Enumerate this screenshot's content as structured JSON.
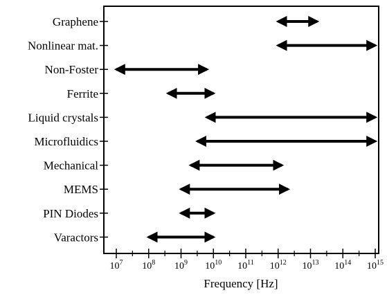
{
  "chart_data": {
    "type": "range",
    "title": "",
    "xlabel": "Frequency [Hz]",
    "ylabel": "",
    "x_scale": "log10",
    "xlim": [
      1000000,
      1000000000000000
    ],
    "x_ticks": [
      {
        "base": "10",
        "exp": "7",
        "value": 10000000
      },
      {
        "base": "10",
        "exp": "8",
        "value": 100000000
      },
      {
        "base": "10",
        "exp": "9",
        "value": 1000000000
      },
      {
        "base": "10",
        "exp": "10",
        "value": 10000000000
      },
      {
        "base": "10",
        "exp": "11",
        "value": 100000000000
      },
      {
        "base": "10",
        "exp": "12",
        "value": 1000000000000
      },
      {
        "base": "10",
        "exp": "13",
        "value": 10000000000000
      },
      {
        "base": "10",
        "exp": "14",
        "value": 100000000000000
      },
      {
        "base": "10",
        "exp": "15",
        "value": 1000000000000000
      }
    ],
    "categories": [
      "Graphene",
      "Nonlinear mat.",
      "Non-Foster",
      "Ferrite",
      "Liquid crystals",
      "Microfluidics",
      "Mechanical",
      "MEMS",
      "PIN Diodes",
      "Varactors"
    ],
    "ranges": [
      {
        "low": 1000000000000,
        "high": 16000000000000
      },
      {
        "low": 1000000000000,
        "high": 1000000000000000
      },
      {
        "low": 10000000,
        "high": 6300000000
      },
      {
        "low": 400000000,
        "high": 10000000000
      },
      {
        "low": 6300000000,
        "high": 1000000000000000
      },
      {
        "low": 3200000000,
        "high": 1000000000000000
      },
      {
        "low": 2000000000,
        "high": 1300000000000
      },
      {
        "low": 1000000000,
        "high": 2000000000000
      },
      {
        "low": 1000000000,
        "high": 10000000000
      },
      {
        "low": 100000000,
        "high": 10000000000
      }
    ],
    "grid": false,
    "legend": "none",
    "colors": {
      "arrow": "#000000",
      "axis": "#000000",
      "background": "#ffffff"
    }
  }
}
